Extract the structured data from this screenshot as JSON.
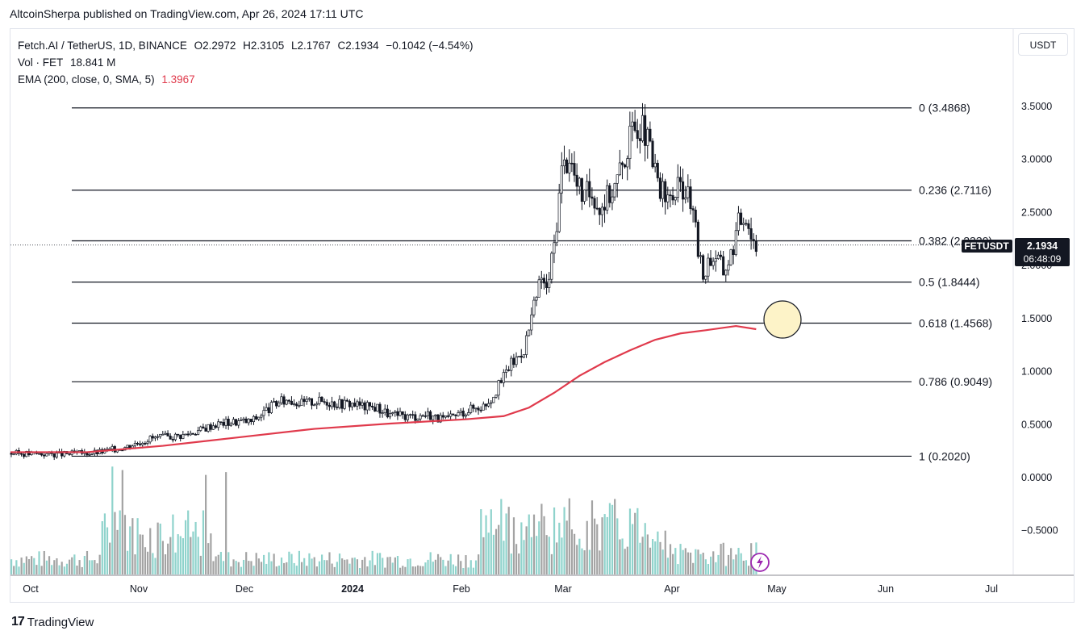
{
  "published": "AltcoinSherpa published on TradingView.com, Apr 26, 2024 17:11 UTC",
  "legend": {
    "symbol": "Fetch.AI / TetherUS, 1D, BINANCE",
    "open": "O2.2972",
    "high": "H2.3105",
    "low": "L2.1767",
    "close": "C2.1934",
    "change": "−0.1042 (−4.54%)",
    "vol_label": "Vol · FET",
    "vol_value": "18.841 M",
    "ema_label": "EMA (200, close, 0, SMA, 5)",
    "ema_value": "1.3967"
  },
  "currency": "USDT",
  "footer": {
    "logo_mark": "17",
    "logo_text": "TradingView"
  },
  "chart_data": {
    "type": "candlestick",
    "symbol": "FETUSDT",
    "last_price": "2.1934",
    "countdown": "06:48:09",
    "y_ticks": [
      "3.5000",
      "3.0000",
      "2.5000",
      "2.0000",
      "1.5000",
      "1.0000",
      "0.5000",
      "0.0000",
      "−0.5000"
    ],
    "y_tick_values": [
      3.5,
      3.0,
      2.5,
      2.0,
      1.5,
      1.0,
      0.5,
      0.0,
      -0.5
    ],
    "x_ticks": [
      "Oct",
      "Nov",
      "Dec",
      "2024",
      "Feb",
      "Mar",
      "Apr",
      "May",
      "Jun",
      "Jul"
    ],
    "fib_levels": [
      {
        "label": "0 (3.4868)",
        "value": 3.4868
      },
      {
        "label": "0.236 (2.7116)",
        "value": 2.7116
      },
      {
        "label": "0.382 (2.2330)",
        "value": 2.233
      },
      {
        "label": "0.5 (1.8444)",
        "value": 1.8444
      },
      {
        "label": "0.618 (1.4568)",
        "value": 1.4568
      },
      {
        "label": "0.786 (0.9049)",
        "value": 0.9049
      },
      {
        "label": "1 (0.2020)",
        "value": 0.202
      }
    ],
    "price_path": [
      [
        0,
        0.23
      ],
      [
        20,
        0.22
      ],
      [
        35,
        0.24
      ],
      [
        45,
        0.29
      ],
      [
        50,
        0.33
      ],
      [
        55,
        0.37
      ],
      [
        60,
        0.38
      ],
      [
        68,
        0.4
      ],
      [
        75,
        0.45
      ],
      [
        80,
        0.5
      ],
      [
        85,
        0.52
      ],
      [
        90,
        0.53
      ],
      [
        95,
        0.53
      ],
      [
        98,
        0.58
      ],
      [
        100,
        0.62
      ],
      [
        105,
        0.7
      ],
      [
        110,
        0.74
      ],
      [
        115,
        0.7
      ],
      [
        120,
        0.72
      ],
      [
        125,
        0.72
      ],
      [
        130,
        0.7
      ],
      [
        135,
        0.7
      ],
      [
        140,
        0.67
      ],
      [
        145,
        0.66
      ],
      [
        150,
        0.59
      ],
      [
        155,
        0.58
      ],
      [
        160,
        0.58
      ],
      [
        165,
        0.6
      ],
      [
        170,
        0.55
      ],
      [
        173,
        0.55
      ],
      [
        177,
        0.6
      ],
      [
        182,
        0.65
      ],
      [
        187,
        0.68
      ],
      [
        190,
        0.75
      ],
      [
        194,
        0.9
      ],
      [
        197,
        1.05
      ],
      [
        200,
        1.12
      ],
      [
        203,
        1.22
      ],
      [
        205,
        1.4
      ],
      [
        208,
        1.7
      ],
      [
        210,
        1.9
      ],
      [
        212,
        1.75
      ],
      [
        215,
        2.2
      ],
      [
        218,
        2.9
      ],
      [
        221,
        3.05
      ],
      [
        224,
        2.75
      ],
      [
        227,
        2.65
      ],
      [
        230,
        2.7
      ],
      [
        233,
        2.55
      ],
      [
        236,
        2.65
      ],
      [
        239,
        2.75
      ],
      [
        242,
        2.95
      ],
      [
        245,
        3.2
      ],
      [
        248,
        3.35
      ],
      [
        251,
        3.25
      ],
      [
        254,
        2.95
      ],
      [
        257,
        2.7
      ],
      [
        260,
        2.6
      ],
      [
        263,
        2.7
      ],
      [
        266,
        2.75
      ],
      [
        269,
        2.6
      ],
      [
        272,
        2.15
      ],
      [
        274,
        1.9
      ],
      [
        276,
        2.05
      ],
      [
        279,
        2.1
      ],
      [
        282,
        1.95
      ],
      [
        285,
        2.1
      ],
      [
        288,
        2.4
      ],
      [
        291,
        2.5
      ],
      [
        293,
        2.3
      ],
      [
        295,
        2.19
      ]
    ],
    "ema_path": [
      [
        0,
        0.24
      ],
      [
        30,
        0.24
      ],
      [
        60,
        0.3
      ],
      [
        90,
        0.38
      ],
      [
        120,
        0.46
      ],
      [
        150,
        0.51
      ],
      [
        180,
        0.55
      ],
      [
        195,
        0.58
      ],
      [
        205,
        0.66
      ],
      [
        215,
        0.8
      ],
      [
        225,
        0.96
      ],
      [
        235,
        1.09
      ],
      [
        245,
        1.2
      ],
      [
        255,
        1.3
      ],
      [
        265,
        1.36
      ],
      [
        275,
        1.39
      ],
      [
        287,
        1.43
      ],
      [
        295,
        1.4
      ]
    ],
    "volume_note": "volume histogram shown below price (teal up / gray down bars)"
  }
}
